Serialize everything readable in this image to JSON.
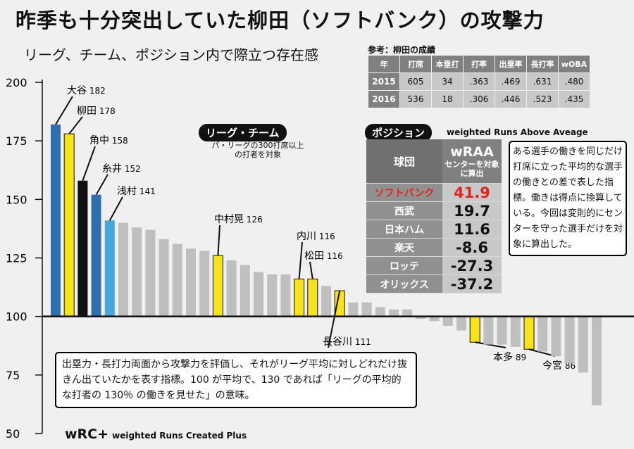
{
  "title": "昨季も十分突出していた柳田（ソフトバンク）の攻撃力",
  "subtitle": "リーグ、チーム、ポジション内で際立つ存在感",
  "stats_table": {
    "caption": "参考：柳田の成績",
    "headers": [
      "年",
      "打席",
      "本塁打",
      "打率",
      "出塁率",
      "長打率",
      "wOBA"
    ],
    "rows": [
      [
        "2015",
        "605",
        "34",
        ".363",
        ".469",
        ".631",
        ".480"
      ],
      [
        "2016",
        "536",
        "18",
        ".306",
        ".446",
        ".523",
        ".435"
      ]
    ]
  },
  "position_table": {
    "tag": "ポジション",
    "caption": "weighted Runs Above Aveage",
    "team_header": "球団",
    "value_header": "wRAA",
    "value_subheader": "センターを対象に算出",
    "rows": [
      {
        "team": "ソフトバンク",
        "value": "41.9",
        "highlight": true
      },
      {
        "team": "西武",
        "value": "19.7",
        "highlight": false
      },
      {
        "team": "日本ハム",
        "value": "11.6",
        "highlight": false
      },
      {
        "team": "楽天",
        "value": "-8.6",
        "highlight": false
      },
      {
        "team": "ロッテ",
        "value": "-27.3",
        "highlight": false
      },
      {
        "team": "オリックス",
        "value": "-37.2",
        "highlight": false
      }
    ]
  },
  "wraa_note": "ある選手の働きを同じだけ打席に立った平均的な選手の働きとの差で表した指標。働きは得点に換算している。今回は変則的にセンターを守った選手だけを対象に算出した。",
  "league_tag": "リーグ・チーム",
  "league_note": "パ・リーグの300打席以上の打者を対象",
  "wrc_note": "出塁力・長打力両面から攻撃力を評価し、それがリーグ平均に対しどれだけ抜きん出ていたかを表す指標。100 が平均で、130 であれば「リーグの平均的な打者の 130％ の働きを見せた」の意味。",
  "wrc_label": "wRC+",
  "wrc_sub": "weighted Runs Created Plus",
  "colors": {
    "softbank": "#f6e31b",
    "blue_dark": "#2f6fb0",
    "blue_light": "#47a8e0",
    "black": "#111111",
    "gray": "#bfbfbf"
  },
  "chart_data": {
    "type": "bar",
    "title": "wRC+",
    "ylabel": "wRC+",
    "ylim": [
      50,
      200
    ],
    "yticks": [
      50,
      75,
      100,
      125,
      150,
      175,
      200
    ],
    "baseline": 100,
    "bars": [
      {
        "name": "大谷",
        "value": 182,
        "color": "blue_dark",
        "label": true
      },
      {
        "name": "柳田",
        "value": 178,
        "color": "softbank",
        "label": true
      },
      {
        "name": "角中",
        "value": 158,
        "color": "black",
        "label": true
      },
      {
        "name": "糸井",
        "value": 152,
        "color": "blue_dark",
        "label": true
      },
      {
        "name": "浅村",
        "value": 141,
        "color": "blue_light",
        "label": true
      },
      {
        "name": "",
        "value": 140,
        "color": "gray"
      },
      {
        "name": "",
        "value": 138,
        "color": "gray"
      },
      {
        "name": "",
        "value": 137,
        "color": "gray"
      },
      {
        "name": "",
        "value": 133,
        "color": "gray"
      },
      {
        "name": "",
        "value": 131,
        "color": "gray"
      },
      {
        "name": "",
        "value": 129,
        "color": "gray"
      },
      {
        "name": "",
        "value": 128,
        "color": "gray"
      },
      {
        "name": "中村晃",
        "value": 126,
        "color": "softbank",
        "label": true
      },
      {
        "name": "",
        "value": 124,
        "color": "gray"
      },
      {
        "name": "",
        "value": 122,
        "color": "gray"
      },
      {
        "name": "",
        "value": 119,
        "color": "gray"
      },
      {
        "name": "",
        "value": 118,
        "color": "gray"
      },
      {
        "name": "",
        "value": 118,
        "color": "gray"
      },
      {
        "name": "内川",
        "value": 116,
        "color": "softbank",
        "label": true
      },
      {
        "name": "松田",
        "value": 116,
        "color": "softbank",
        "label": true
      },
      {
        "name": "",
        "value": 113,
        "color": "gray"
      },
      {
        "name": "長谷川",
        "value": 111,
        "color": "softbank",
        "label": true
      },
      {
        "name": "",
        "value": 106,
        "color": "gray"
      },
      {
        "name": "",
        "value": 106,
        "color": "gray"
      },
      {
        "name": "",
        "value": 104,
        "color": "gray"
      },
      {
        "name": "",
        "value": 103,
        "color": "gray"
      },
      {
        "name": "",
        "value": 103,
        "color": "gray"
      },
      {
        "name": "",
        "value": 99,
        "color": "gray"
      },
      {
        "name": "",
        "value": 98,
        "color": "gray"
      },
      {
        "name": "",
        "value": 96,
        "color": "gray"
      },
      {
        "name": "",
        "value": 94,
        "color": "gray"
      },
      {
        "name": "本多",
        "value": 89,
        "color": "softbank",
        "label": true
      },
      {
        "name": "",
        "value": 88,
        "color": "gray"
      },
      {
        "name": "",
        "value": 88,
        "color": "gray"
      },
      {
        "name": "",
        "value": 87,
        "color": "gray"
      },
      {
        "name": "今宮",
        "value": 86,
        "color": "softbank",
        "label": true
      },
      {
        "name": "",
        "value": 85,
        "color": "gray"
      },
      {
        "name": "",
        "value": 83,
        "color": "gray"
      },
      {
        "name": "",
        "value": 80,
        "color": "gray"
      },
      {
        "name": "",
        "value": 76,
        "color": "gray"
      },
      {
        "name": "",
        "value": 62,
        "color": "gray"
      }
    ]
  }
}
